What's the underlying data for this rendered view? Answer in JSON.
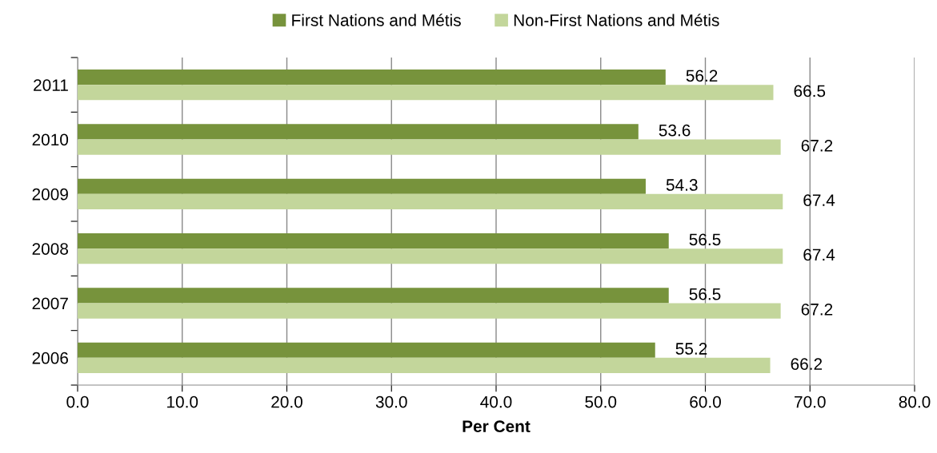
{
  "chart_data": {
    "type": "bar",
    "orientation": "horizontal",
    "xlabel": "Per Cent",
    "categories": [
      "2011",
      "2010",
      "2009",
      "2008",
      "2007",
      "2006"
    ],
    "series": [
      {
        "name": "First Nations and Métis",
        "color": "#77933c",
        "values": [
          56.2,
          53.6,
          54.3,
          56.5,
          56.5,
          55.2
        ]
      },
      {
        "name": "Non-First Nations and Métis",
        "color": "#c3d69b",
        "values": [
          66.5,
          67.2,
          67.4,
          67.4,
          67.2,
          66.2
        ]
      }
    ],
    "xlim": [
      0,
      80
    ],
    "xticks": [
      {
        "value": 0,
        "label": "0.0"
      },
      {
        "value": 10,
        "label": "10.0"
      },
      {
        "value": 20,
        "label": "20.0"
      },
      {
        "value": 30,
        "label": "30.0"
      },
      {
        "value": 40,
        "label": "40.0"
      },
      {
        "value": 50,
        "label": "50.0"
      },
      {
        "value": 60,
        "label": "60.0"
      },
      {
        "value": 70,
        "label": "70.0"
      },
      {
        "value": 80,
        "label": "80.0"
      }
    ],
    "grid": "x",
    "legend": "top",
    "data_labels": true
  }
}
